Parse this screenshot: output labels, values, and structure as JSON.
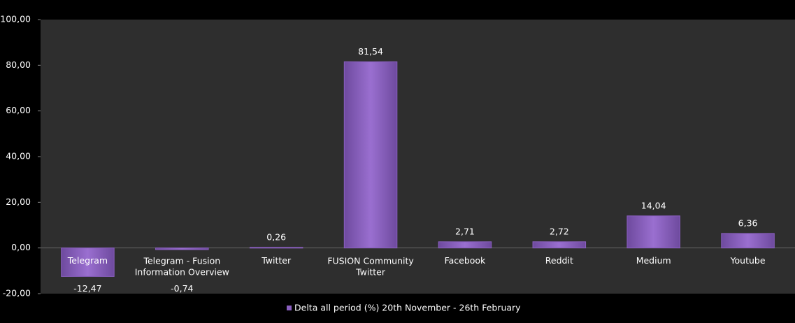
{
  "chart_data": {
    "type": "bar",
    "categories": [
      "Telegram",
      "Telegram - Fusion Information Overview",
      "Twitter",
      "FUSION Community Twitter",
      "Facebook",
      "Reddit",
      "Medium",
      "Youtube"
    ],
    "series": [
      {
        "name": "Delta all period (%) 20th November - 26th February",
        "color": "#8a5fc0",
        "values": [
          -12.47,
          -0.74,
          0.26,
          81.54,
          2.71,
          2.72,
          14.04,
          6.36
        ],
        "value_labels": [
          "-12,47",
          "-0,74",
          "0,26",
          "81,54",
          "2,71",
          "2,72",
          "14,04",
          "6,36"
        ]
      }
    ],
    "ylim": [
      -20,
      100
    ],
    "yticks": [
      {
        "value": -20,
        "label": "-20,00"
      },
      {
        "value": 0,
        "label": "0,00"
      },
      {
        "value": 20,
        "label": "20,00"
      },
      {
        "value": 40,
        "label": "40,00"
      },
      {
        "value": 60,
        "label": "60,00"
      },
      {
        "value": 80,
        "label": "80,00"
      },
      {
        "value": 100,
        "label": "100,00"
      }
    ],
    "grid": false,
    "legend": "bottom"
  }
}
